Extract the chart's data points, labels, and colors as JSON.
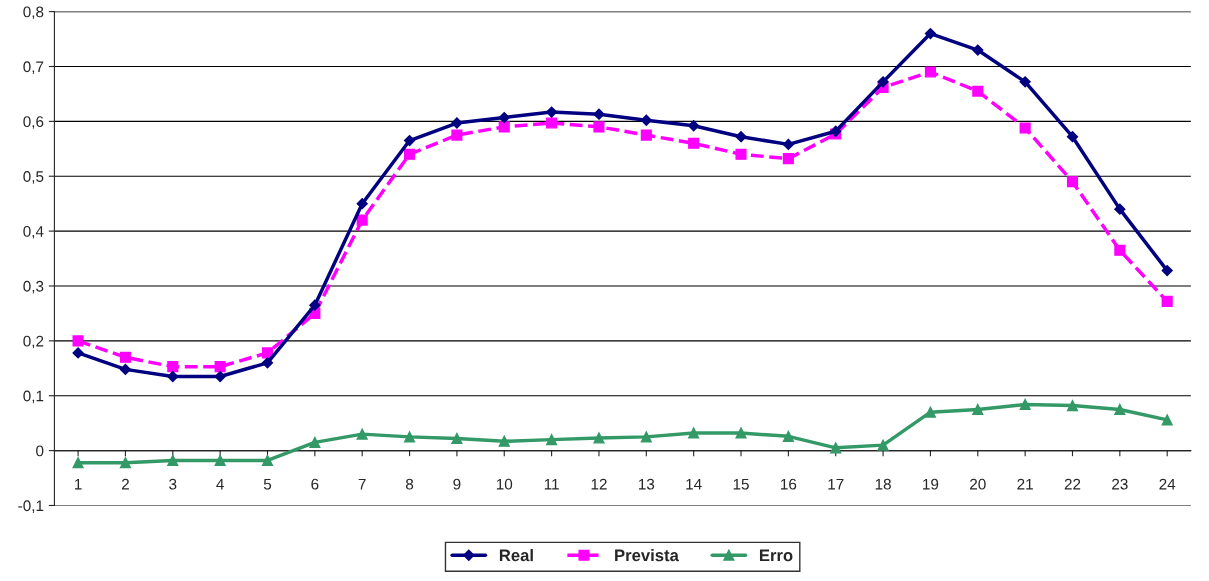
{
  "chart_data": {
    "type": "line",
    "categories": [
      "1",
      "2",
      "3",
      "4",
      "5",
      "6",
      "7",
      "8",
      "9",
      "10",
      "11",
      "12",
      "13",
      "14",
      "15",
      "16",
      "17",
      "18",
      "19",
      "20",
      "21",
      "22",
      "23",
      "24"
    ],
    "series": [
      {
        "name": "Real",
        "color": "#000080",
        "marker": "diamond",
        "line_style": "solid",
        "values": [
          0.178,
          0.148,
          0.135,
          0.135,
          0.16,
          0.265,
          0.45,
          0.565,
          0.597,
          0.607,
          0.617,
          0.613,
          0.602,
          0.592,
          0.572,
          0.558,
          0.582,
          0.672,
          0.76,
          0.73,
          0.672,
          0.572,
          0.44,
          0.328
        ]
      },
      {
        "name": "Prevista",
        "color": "#ff00ff",
        "marker": "square",
        "line_style": "dashed",
        "values": [
          0.2,
          0.17,
          0.153,
          0.153,
          0.178,
          0.25,
          0.42,
          0.54,
          0.575,
          0.59,
          0.597,
          0.59,
          0.575,
          0.56,
          0.54,
          0.532,
          0.577,
          0.662,
          0.69,
          0.655,
          0.588,
          0.49,
          0.365,
          0.272
        ]
      },
      {
        "name": "Erro",
        "color": "#339966",
        "marker": "triangle",
        "line_style": "solid",
        "values": [
          -0.022,
          -0.022,
          -0.018,
          -0.018,
          -0.018,
          0.015,
          0.03,
          0.025,
          0.022,
          0.017,
          0.02,
          0.023,
          0.025,
          0.032,
          0.032,
          0.026,
          0.005,
          0.01,
          0.07,
          0.075,
          0.084,
          0.082,
          0.075,
          0.056
        ]
      }
    ],
    "ylim": [
      -0.1,
      0.8
    ],
    "yticks": [
      {
        "value": -0.1,
        "label": "-0,1"
      },
      0,
      {
        "value": 0.1,
        "label": "0,1"
      },
      {
        "value": 0.2,
        "label": "0,2"
      },
      {
        "value": 0.3,
        "label": "0,3"
      },
      {
        "value": 0.4,
        "label": "0,4"
      },
      {
        "value": 0.5,
        "label": "0,5"
      },
      {
        "value": 0.6,
        "label": "0,6"
      },
      {
        "value": 0.7,
        "label": "0,7"
      },
      {
        "value": 0.8,
        "label": "0,8"
      }
    ],
    "grid": "y",
    "legend": "bottom"
  }
}
